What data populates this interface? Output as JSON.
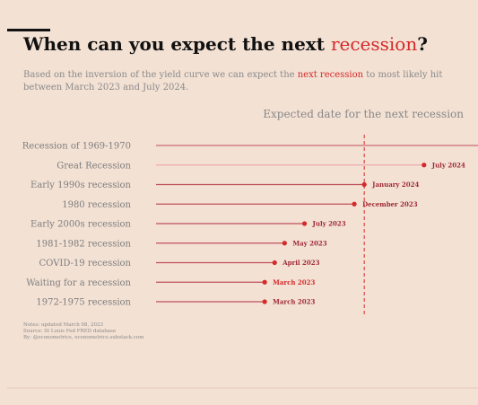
{
  "title": {
    "before": "When can you expect the next ",
    "highlight": "recession",
    "after": "?"
  },
  "subtitle": {
    "line1_before": "Based on the inversion of the yield curve we can expect the ",
    "line1_highlight": "next recession",
    "line1_after": " to most likely hit",
    "line2": "between March 2023 and July 2024."
  },
  "notes": [
    "Notes: updated March 08, 2023",
    "Source: St Louis Fed FRED database",
    "By: @econometrics, econometrics.substack.com"
  ],
  "colors": {
    "background": "#f3e1d4",
    "accent": "#d42a2a",
    "line": "#c0505a",
    "line_light": "#f0aab0",
    "label": "#7d7d7d",
    "grid": "#e6c9bc"
  },
  "chart_data": {
    "type": "dot",
    "axis_title": "Expected date for the next recession",
    "reference_line": "2024-01",
    "xlim": [
      "2022-04",
      "2024-09"
    ],
    "categories": [
      "Recession of 1969-1970",
      "Great Recession",
      "Early 1990s recession",
      "1980 recession",
      "Early 2000s recession",
      "1981-1982 recession",
      "COVID-19 recession",
      "Waiting for a recession",
      "1972-1975 recession"
    ],
    "values": [
      null,
      "2024-07",
      "2024-01",
      "2023-12",
      "2023-07",
      "2023-05",
      "2023-04",
      "2023-03",
      "2023-03"
    ],
    "data_labels": [
      "",
      "July 2024",
      "January 2024",
      "December 2023",
      "July 2023",
      "May 2023",
      "April 2023",
      "March 2023",
      "March 2023"
    ],
    "highlight_category": "Waiting for a recession",
    "light_category": "Great Recession"
  }
}
